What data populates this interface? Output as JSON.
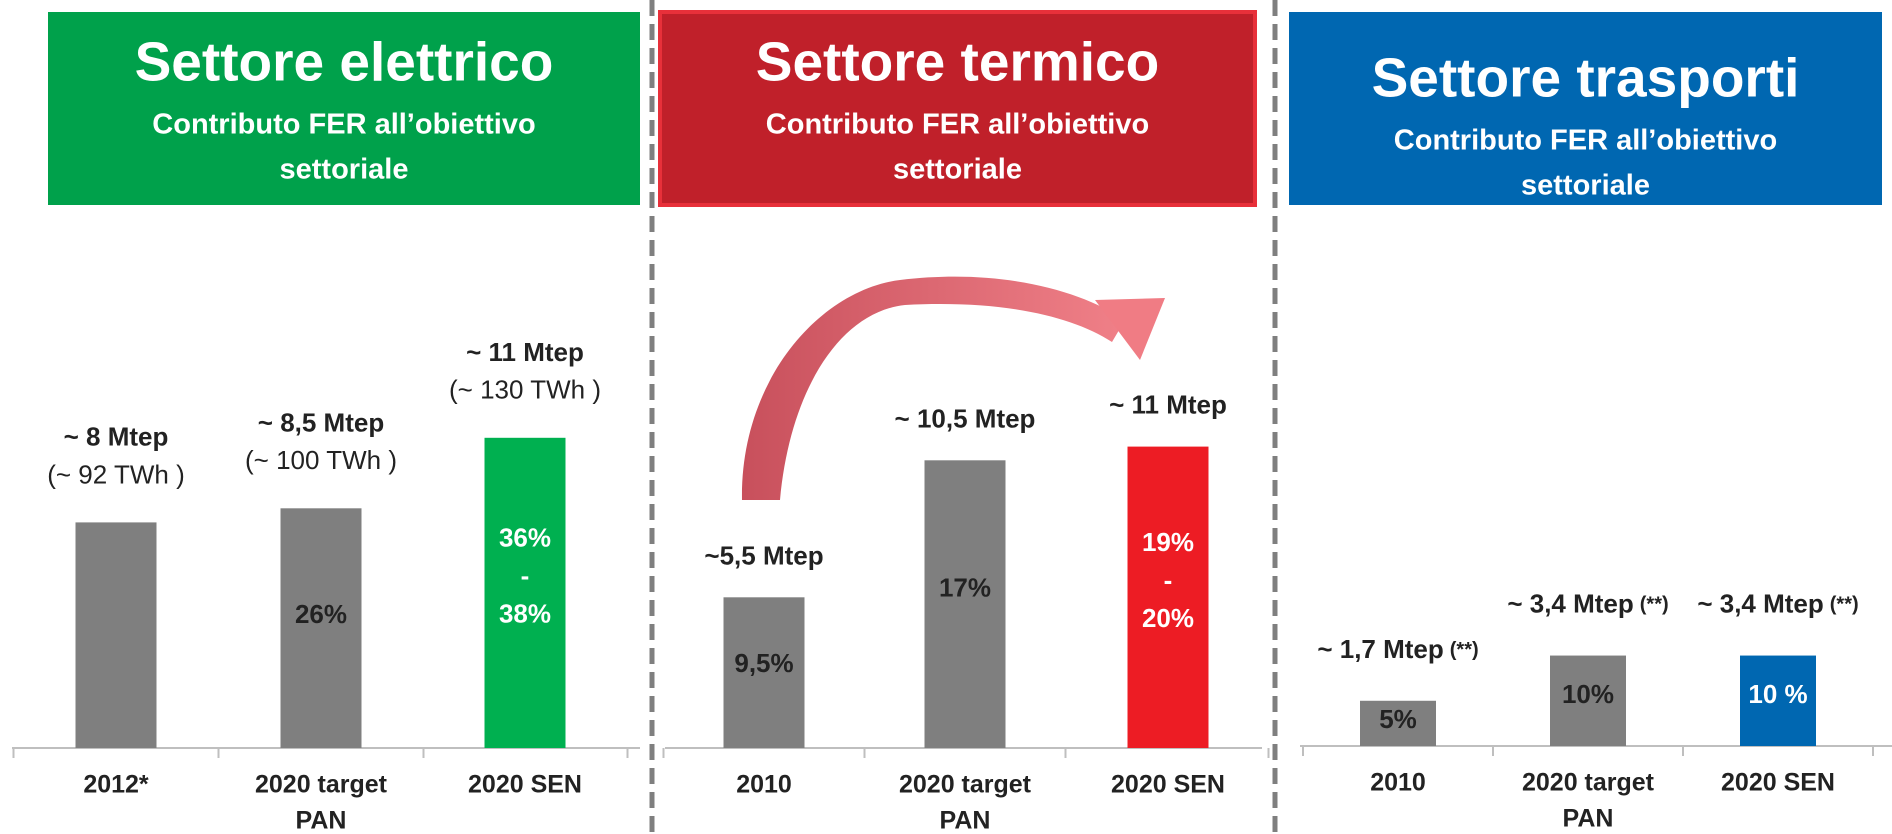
{
  "chart_data": [
    {
      "type": "bar",
      "title": "Settore elettrico",
      "subtitle": [
        "Contributo FER all’obiettivo",
        "settoriale"
      ],
      "header_color": "#00a14b",
      "categories": [
        [
          "2012*"
        ],
        [
          "2020 target",
          "PAN"
        ],
        [
          "2020 SEN"
        ]
      ],
      "values": [
        8,
        8.5,
        11
      ],
      "value_labels": [
        "~ 8 Mtep",
        "~ 8,5 Mtep",
        "~ 11 Mtep"
      ],
      "sub_labels": [
        "(~ 92 TWh )",
        "(~ 100 TWh )",
        "(~ 130 TWh )"
      ],
      "inner_labels": [
        null,
        [
          "26%"
        ],
        [
          "36%",
          "-",
          "38%"
        ]
      ],
      "colors": [
        "#7f7f7f",
        "#7f7f7f",
        "#00b050"
      ],
      "inner_label_colors": [
        "#222222",
        "#222222",
        "#ffffff"
      ]
    },
    {
      "type": "bar",
      "title": "Settore termico",
      "subtitle": [
        "Contributo FER all’obiettivo",
        "settoriale"
      ],
      "header_color": "#c0202a",
      "categories": [
        [
          "2010"
        ],
        [
          "2020 target",
          "PAN"
        ],
        [
          "2020 SEN"
        ]
      ],
      "values": [
        5.5,
        10.5,
        11
      ],
      "value_labels": [
        "~5,5 Mtep",
        "~ 10,5 Mtep",
        "~ 11 Mtep"
      ],
      "inner_labels": [
        [
          "9,5%"
        ],
        [
          "17%"
        ],
        [
          "19%",
          "-",
          "20%"
        ]
      ],
      "colors": [
        "#7f7f7f",
        "#7f7f7f",
        "#ed1c24"
      ],
      "inner_label_colors": [
        "#222222",
        "#222222",
        "#ffffff"
      ]
    },
    {
      "type": "bar",
      "title": "Settore trasporti",
      "subtitle": [
        "Contributo FER all’obiettivo",
        "settoriale"
      ],
      "header_color": "#0067b1",
      "categories": [
        [
          "2010"
        ],
        [
          "2020 target",
          "PAN"
        ],
        [
          "2020 SEN"
        ]
      ],
      "values": [
        1.7,
        3.4,
        3.4
      ],
      "value_labels": [
        "~ 1,7 Mtep",
        "~ 3,4 Mtep",
        "~ 3,4 Mtep"
      ],
      "notes": [
        "(**)",
        "(**)",
        "(**)"
      ],
      "inner_labels": [
        [
          "5%"
        ],
        [
          "10%"
        ],
        [
          "10 %"
        ]
      ],
      "colors": [
        "#7f7f7f",
        "#7f7f7f",
        "#0067b1"
      ],
      "inner_label_colors": [
        "#222222",
        "#222222",
        "#ffffff"
      ]
    }
  ]
}
